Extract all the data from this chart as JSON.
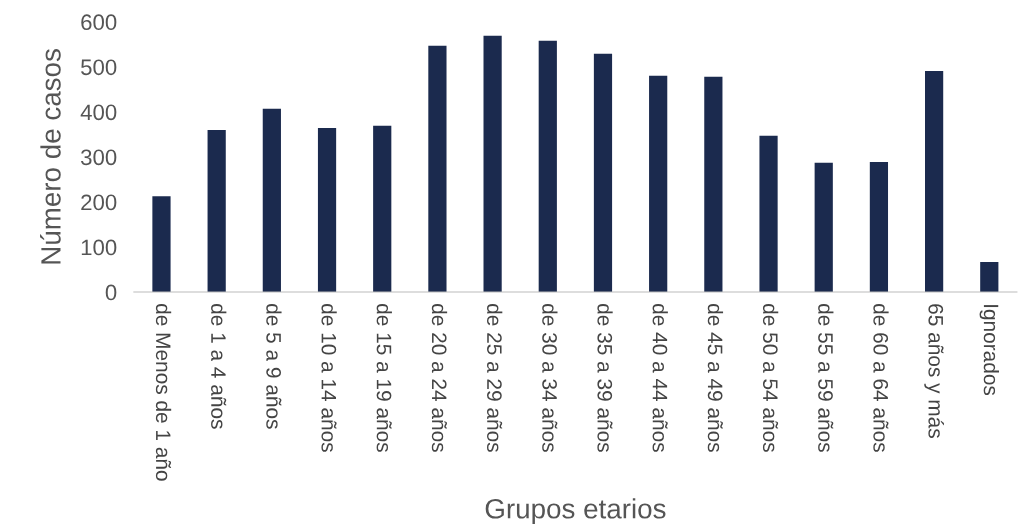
{
  "chart_data": {
    "type": "bar",
    "xlabel": "Grupos etarios",
    "ylabel": "Número de casos",
    "categories": [
      "de Menos de 1 año",
      "de 1 a 4 años",
      "de 5 a 9 años",
      "de 10 a 14 años",
      "de 15 a 19 años",
      "de 20 a 24 años",
      "de 25 a 29 años",
      "de 30 a 34 años",
      "de 35 a 39 años",
      "de 40 a 44 años",
      "de 45 a 49 años",
      "de 50 a 54 años",
      "de 55 a 59 años",
      "de 60 a 64 años",
      "65 años y más",
      "Ignorados"
    ],
    "values": [
      213,
      360,
      407,
      364,
      369,
      547,
      569,
      558,
      529,
      480,
      478,
      347,
      287,
      289,
      491,
      67
    ],
    "color": "#1b2a4e",
    "ylim": [
      0,
      600
    ],
    "yticks": [
      0,
      100,
      200,
      300,
      400,
      500,
      600
    ],
    "grid": false,
    "legend": false
  }
}
